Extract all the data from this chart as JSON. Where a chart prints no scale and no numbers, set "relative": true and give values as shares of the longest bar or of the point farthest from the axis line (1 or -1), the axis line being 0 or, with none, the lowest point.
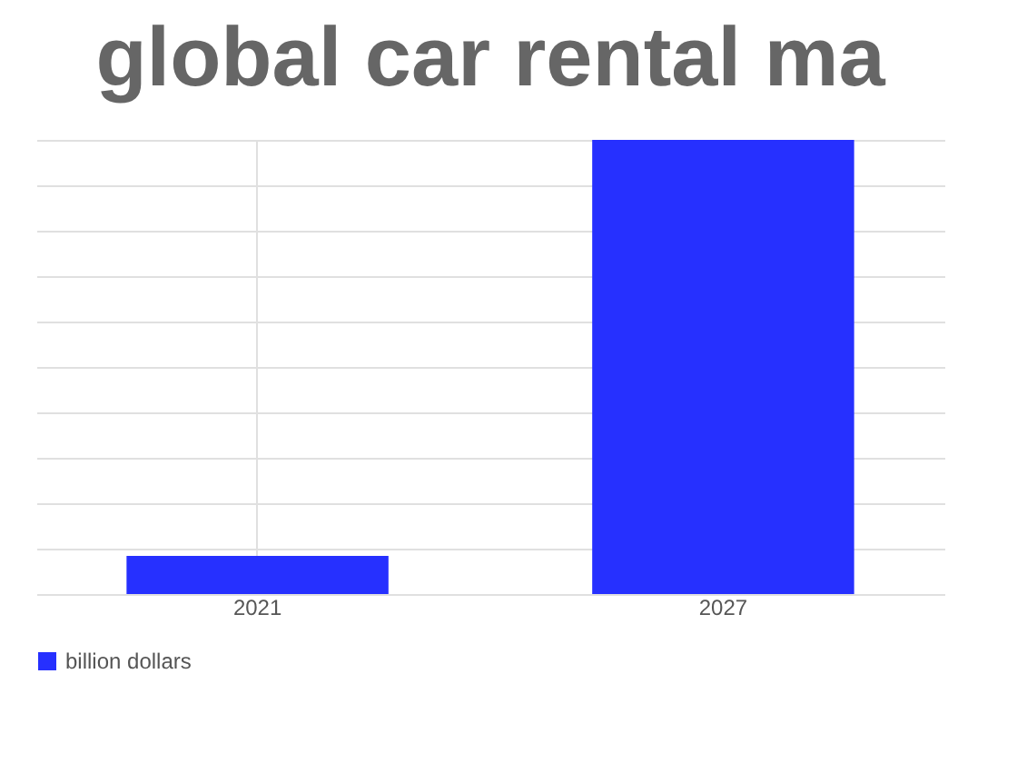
{
  "chart_data": {
    "type": "bar",
    "title": "global car rental ma",
    "categories": [
      "2021",
      "2027"
    ],
    "series": [
      {
        "name": "billion dollars",
        "color": "#2630ff",
        "values": [
          0.084,
          1
        ]
      }
    ],
    "relative": true,
    "grid": true,
    "legend": "bottom"
  }
}
